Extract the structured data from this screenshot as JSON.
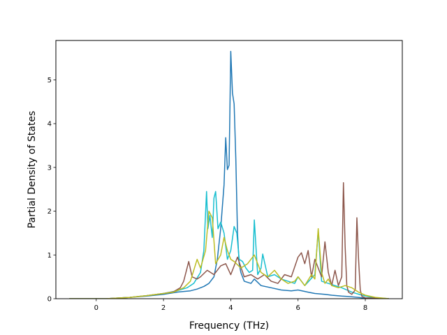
{
  "chart_data": {
    "type": "line",
    "title": "",
    "xlabel": "Frequency (THz)",
    "ylabel": "Partial Density of States",
    "xlim": [
      -1.2,
      9.1
    ],
    "ylim": [
      0,
      5.9
    ],
    "xticks": [
      0,
      2,
      4,
      6,
      8
    ],
    "yticks": [
      0,
      1,
      2,
      3,
      4,
      5
    ],
    "grid": false,
    "legend": "none",
    "series": [
      {
        "color": "#1f77b4",
        "x": [
          -0.8,
          0.3,
          1.0,
          1.5,
          2.0,
          2.4,
          2.8,
          3.0,
          3.2,
          3.35,
          3.5,
          3.6,
          3.7,
          3.8,
          3.85,
          3.9,
          3.95,
          4.0,
          4.05,
          4.1,
          4.15,
          4.2,
          4.25,
          4.3,
          4.4,
          4.6,
          4.7,
          4.9,
          5.2,
          5.5,
          5.8,
          6.0,
          6.3,
          6.5,
          6.8,
          7.0,
          7.3,
          7.5,
          7.8,
          8.0,
          8.3,
          8.7
        ],
        "values": [
          0,
          0,
          0.03,
          0.06,
          0.1,
          0.15,
          0.18,
          0.22,
          0.28,
          0.35,
          0.5,
          0.9,
          1.6,
          2.6,
          3.68,
          2.95,
          3.05,
          5.65,
          4.7,
          4.45,
          3.2,
          1.5,
          0.8,
          0.6,
          0.4,
          0.35,
          0.45,
          0.3,
          0.25,
          0.2,
          0.18,
          0.2,
          0.15,
          0.12,
          0.1,
          0.08,
          0.06,
          0.05,
          0.03,
          0.01,
          0,
          0
        ]
      },
      {
        "color": "#17becf",
        "x": [
          -0.8,
          0.3,
          1.0,
          1.5,
          2.0,
          2.4,
          2.7,
          2.9,
          3.1,
          3.2,
          3.28,
          3.32,
          3.38,
          3.45,
          3.5,
          3.55,
          3.62,
          3.7,
          3.8,
          3.9,
          4.0,
          4.1,
          4.18,
          4.25,
          4.35,
          4.45,
          4.55,
          4.65,
          4.7,
          4.8,
          4.9,
          4.95,
          5.1,
          5.3,
          5.5,
          5.7,
          5.9,
          6.0,
          6.2,
          6.5,
          6.6,
          6.7,
          6.9,
          7.1,
          7.3,
          7.6,
          7.9,
          8.2,
          8.7
        ],
        "values": [
          0,
          0,
          0.03,
          0.07,
          0.12,
          0.18,
          0.25,
          0.35,
          0.6,
          1.1,
          2.45,
          1.6,
          1.9,
          1.4,
          2.3,
          2.45,
          1.6,
          1.75,
          1.5,
          0.9,
          1.1,
          1.65,
          1.5,
          0.9,
          0.85,
          0.7,
          0.6,
          0.65,
          1.8,
          0.55,
          0.7,
          1.02,
          0.5,
          0.55,
          0.45,
          0.4,
          0.35,
          0.5,
          0.3,
          0.55,
          1.55,
          0.4,
          0.35,
          0.3,
          0.25,
          0.15,
          0.08,
          0.03,
          0
        ]
      },
      {
        "color": "#8c564b",
        "x": [
          -0.8,
          0.3,
          1.0,
          1.5,
          2.0,
          2.3,
          2.5,
          2.6,
          2.75,
          2.85,
          3.0,
          3.1,
          3.3,
          3.5,
          3.7,
          3.85,
          4.0,
          4.2,
          4.4,
          4.6,
          4.8,
          5.0,
          5.2,
          5.4,
          5.6,
          5.8,
          6.0,
          6.1,
          6.2,
          6.3,
          6.4,
          6.5,
          6.6,
          6.7,
          6.8,
          6.9,
          7.0,
          7.1,
          7.2,
          7.3,
          7.35,
          7.4,
          7.45,
          7.5,
          7.6,
          7.7,
          7.75,
          7.8,
          7.85,
          7.9,
          8.0,
          8.7
        ],
        "values": [
          0,
          0,
          0.03,
          0.07,
          0.12,
          0.16,
          0.25,
          0.4,
          0.85,
          0.5,
          0.45,
          0.5,
          0.65,
          0.55,
          0.75,
          0.8,
          0.55,
          0.95,
          0.5,
          0.55,
          0.45,
          0.55,
          0.4,
          0.35,
          0.55,
          0.5,
          0.95,
          1.05,
          0.8,
          1.1,
          0.5,
          0.9,
          0.7,
          0.5,
          1.3,
          0.6,
          0.3,
          0.65,
          0.3,
          0.5,
          2.65,
          1.2,
          0.3,
          0.15,
          0.1,
          0.2,
          1.85,
          0.9,
          0.2,
          0.05,
          0.02,
          0
        ]
      },
      {
        "color": "#bcbd22",
        "x": [
          -0.8,
          0.3,
          1.0,
          1.5,
          2.0,
          2.3,
          2.6,
          2.8,
          3.0,
          3.1,
          3.25,
          3.35,
          3.45,
          3.55,
          3.7,
          3.8,
          3.9,
          4.0,
          4.1,
          4.3,
          4.5,
          4.7,
          4.9,
          5.1,
          5.3,
          5.5,
          5.7,
          5.9,
          6.0,
          6.2,
          6.4,
          6.5,
          6.6,
          6.7,
          6.8,
          6.9,
          7.0,
          7.2,
          7.4,
          7.6,
          7.8,
          8.0,
          8.3,
          8.7
        ],
        "values": [
          0,
          0,
          0.03,
          0.07,
          0.12,
          0.15,
          0.25,
          0.4,
          0.9,
          0.7,
          1.1,
          2.0,
          1.85,
          0.8,
          1.0,
          1.4,
          1.1,
          0.9,
          0.85,
          0.7,
          0.8,
          1.0,
          0.6,
          0.5,
          0.65,
          0.45,
          0.35,
          0.4,
          0.5,
          0.3,
          0.55,
          0.45,
          1.6,
          0.6,
          0.35,
          0.45,
          0.3,
          0.25,
          0.3,
          0.25,
          0.15,
          0.08,
          0.03,
          0
        ]
      }
    ]
  }
}
